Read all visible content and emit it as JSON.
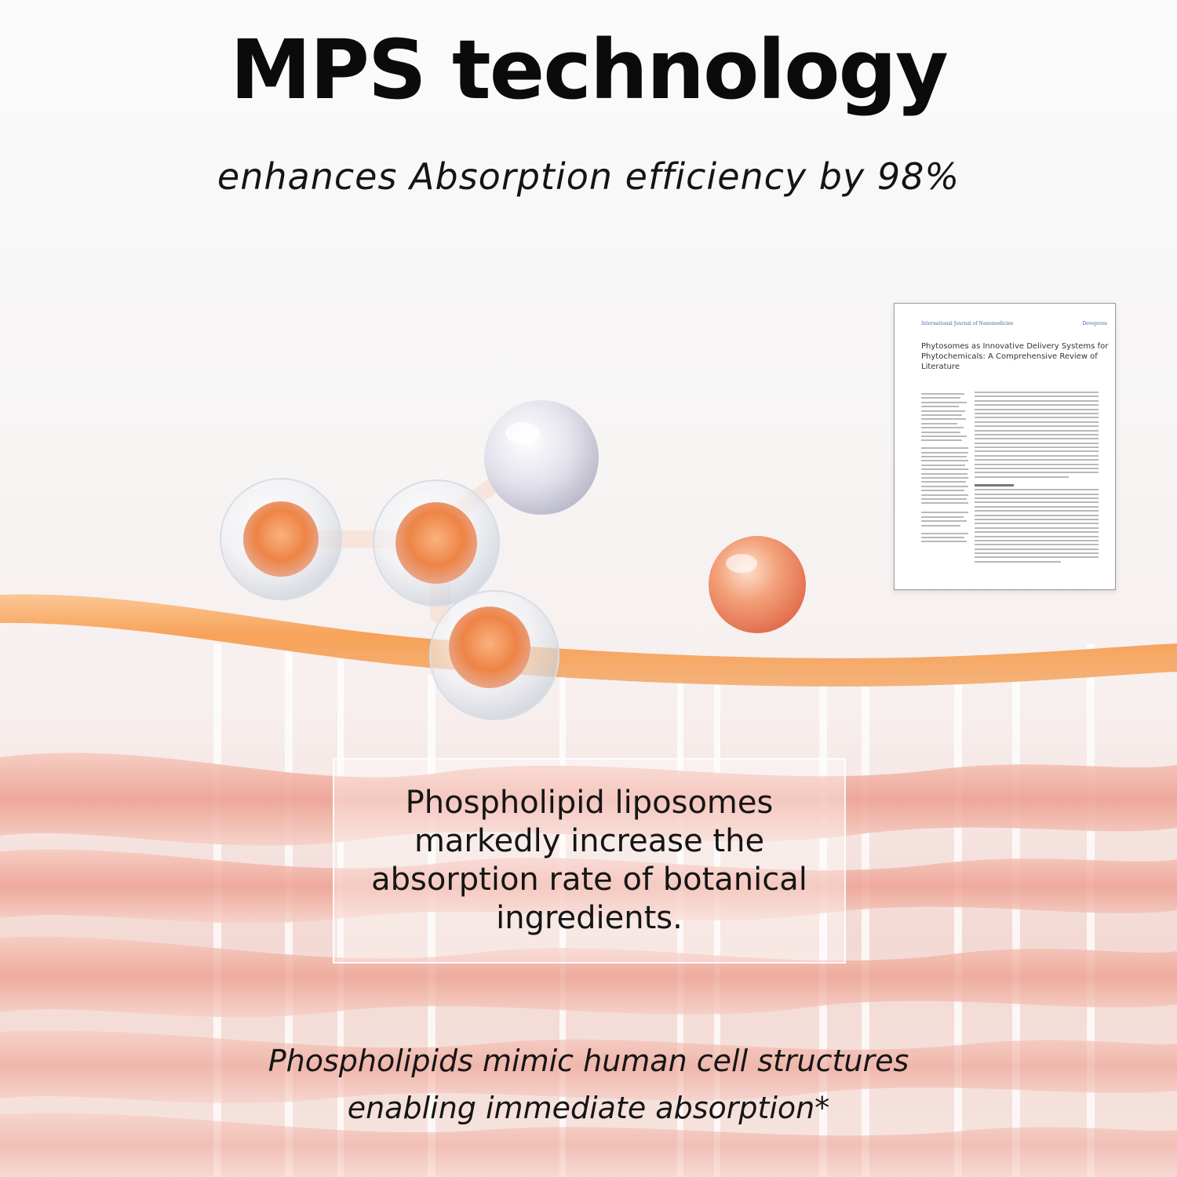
{
  "headline": "MPS technology",
  "subheadline": "enhances Absorption efficiency by 98%",
  "callout": "Phospholipid liposomes markedly increase the absorption rate of botanical ingredients.",
  "footnote_line1": "Phospholipids mimic human cell structures",
  "footnote_line2": "enabling immediate absorption*",
  "paper": {
    "journal": "International Journal of Nanomedicine",
    "publisher": "Dovepress",
    "title": "Phytosomes as Innovative Delivery Systems for Phytochemicals: A Comprehensive Review of Literature"
  },
  "colors": {
    "membrane_orange": "#f7a259",
    "tissue_pink": "#ec9c8c",
    "liposome_core": "#ef8a4f",
    "text_dark": "#0b0b0b"
  }
}
